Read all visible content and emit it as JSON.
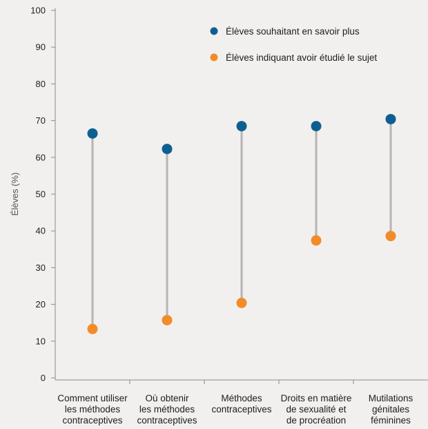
{
  "chart_data": {
    "type": "scatter",
    "subtype": "dumbbell",
    "ylabel": "Élèves (%)",
    "xlabel": "",
    "ylim": [
      0,
      100
    ],
    "yticks": [
      0,
      10,
      20,
      30,
      40,
      50,
      60,
      70,
      80,
      90,
      100
    ],
    "grid": false,
    "legend_position": "top-right",
    "categories": [
      [
        "Comment utiliser",
        "les méthodes",
        "contraceptives"
      ],
      [
        "Où obtenir",
        "les méthodes",
        "contraceptives"
      ],
      [
        "Méthodes",
        "contraceptives"
      ],
      [
        "Droits en matière",
        "de sexualité et",
        "de procréation"
      ],
      [
        "Mutilations",
        "génitales",
        "féminines"
      ]
    ],
    "series": [
      {
        "name": "Élèves souhaitant en savoir plus",
        "color": "#0e5f91",
        "values": [
          66.5,
          62.3,
          68.5,
          68.5,
          70.4
        ]
      },
      {
        "name": "Élèves indiquant avoir étudié le sujet",
        "color": "#f28c28",
        "values": [
          13.3,
          15.7,
          20.4,
          37.4,
          38.6
        ]
      }
    ],
    "connector_color": "#b4b4b4"
  }
}
